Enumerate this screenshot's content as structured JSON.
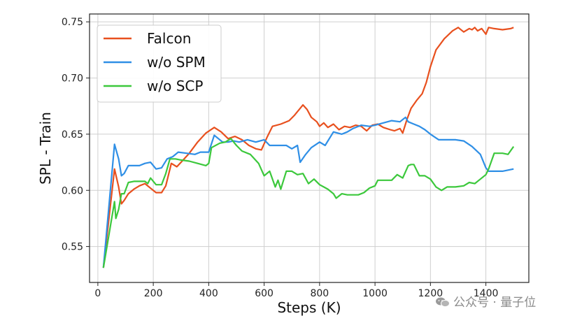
{
  "watermark": {
    "text": "公众号 · 量子位",
    "icon": "wechat-icon"
  },
  "chart_data": {
    "type": "line",
    "xlabel": "Steps (K)",
    "ylabel": "SPL - Train",
    "xlim": [
      -30,
      1555
    ],
    "ylim": [
      0.518,
      0.757
    ],
    "xticks": [
      0,
      200,
      400,
      600,
      800,
      1000,
      1200,
      1400
    ],
    "yticks": [
      0.55,
      0.6,
      0.65,
      0.7,
      0.75
    ],
    "ytick_labels": [
      "0.55",
      "0.60",
      "0.65",
      "0.70",
      "0.75"
    ],
    "grid": true,
    "legend": "top-left",
    "series": [
      {
        "name": "Falcon",
        "color": "#E8501E",
        "x": [
          20,
          60,
          75,
          85,
          95,
          110,
          130,
          150,
          170,
          200,
          210,
          230,
          245,
          265,
          285,
          300,
          330,
          360,
          390,
          420,
          445,
          470,
          495,
          520,
          545,
          570,
          590,
          610,
          630,
          660,
          690,
          710,
          740,
          755,
          770,
          790,
          800,
          815,
          830,
          850,
          870,
          890,
          910,
          930,
          950,
          970,
          990,
          1010,
          1030,
          1055,
          1070,
          1090,
          1100,
          1115,
          1130,
          1150,
          1170,
          1185,
          1200,
          1220,
          1250,
          1280,
          1300,
          1320,
          1340,
          1350,
          1360,
          1370,
          1385,
          1400,
          1410,
          1430,
          1460,
          1490,
          1500
        ],
        "y": [
          0.531,
          0.619,
          0.603,
          0.588,
          0.591,
          0.597,
          0.601,
          0.604,
          0.606,
          0.6,
          0.598,
          0.598,
          0.604,
          0.624,
          0.621,
          0.625,
          0.633,
          0.643,
          0.651,
          0.656,
          0.652,
          0.646,
          0.648,
          0.645,
          0.64,
          0.637,
          0.636,
          0.647,
          0.657,
          0.659,
          0.662,
          0.667,
          0.676,
          0.672,
          0.665,
          0.661,
          0.657,
          0.66,
          0.656,
          0.659,
          0.654,
          0.657,
          0.656,
          0.658,
          0.657,
          0.653,
          0.658,
          0.659,
          0.656,
          0.654,
          0.653,
          0.655,
          0.651,
          0.663,
          0.673,
          0.68,
          0.686,
          0.696,
          0.71,
          0.725,
          0.735,
          0.742,
          0.745,
          0.741,
          0.744,
          0.743,
          0.745,
          0.742,
          0.744,
          0.739,
          0.745,
          0.744,
          0.743,
          0.744,
          0.745
        ]
      },
      {
        "name": "w/o SPM",
        "color": "#2F8FE6",
        "x": [
          20,
          60,
          75,
          85,
          95,
          110,
          130,
          150,
          170,
          190,
          210,
          230,
          250,
          270,
          290,
          320,
          350,
          370,
          400,
          420,
          450,
          470,
          490,
          510,
          540,
          570,
          600,
          620,
          650,
          680,
          700,
          720,
          730,
          750,
          770,
          800,
          820,
          850,
          880,
          900,
          920,
          950,
          980,
          1000,
          1030,
          1060,
          1090,
          1100,
          1110,
          1120,
          1140,
          1160,
          1180,
          1200,
          1230,
          1260,
          1290,
          1320,
          1350,
          1380,
          1400,
          1410,
          1430,
          1460,
          1500
        ],
        "y": [
          0.531,
          0.641,
          0.628,
          0.613,
          0.615,
          0.622,
          0.622,
          0.622,
          0.624,
          0.625,
          0.619,
          0.62,
          0.628,
          0.63,
          0.634,
          0.633,
          0.632,
          0.634,
          0.634,
          0.649,
          0.643,
          0.643,
          0.644,
          0.643,
          0.645,
          0.643,
          0.645,
          0.64,
          0.64,
          0.64,
          0.637,
          0.64,
          0.625,
          0.632,
          0.638,
          0.643,
          0.64,
          0.652,
          0.65,
          0.652,
          0.655,
          0.658,
          0.657,
          0.658,
          0.66,
          0.662,
          0.661,
          0.663,
          0.665,
          0.661,
          0.659,
          0.657,
          0.654,
          0.65,
          0.645,
          0.645,
          0.645,
          0.644,
          0.639,
          0.632,
          0.62,
          0.617,
          0.617,
          0.617,
          0.619
        ]
      },
      {
        "name": "w/o SCP",
        "color": "#3CC83C",
        "x": [
          20,
          60,
          65,
          75,
          85,
          95,
          110,
          130,
          150,
          170,
          180,
          190,
          210,
          230,
          245,
          260,
          280,
          300,
          330,
          360,
          390,
          400,
          410,
          440,
          460,
          480,
          500,
          520,
          550,
          580,
          600,
          620,
          640,
          650,
          660,
          680,
          700,
          720,
          740,
          760,
          780,
          800,
          815,
          830,
          850,
          860,
          880,
          900,
          920,
          940,
          960,
          980,
          1000,
          1010,
          1040,
          1060,
          1080,
          1100,
          1120,
          1130,
          1140,
          1160,
          1180,
          1200,
          1220,
          1240,
          1260,
          1290,
          1320,
          1340,
          1360,
          1380,
          1400,
          1410,
          1430,
          1460,
          1480,
          1500
        ],
        "y": [
          0.531,
          0.59,
          0.575,
          0.583,
          0.597,
          0.597,
          0.607,
          0.608,
          0.608,
          0.608,
          0.606,
          0.611,
          0.605,
          0.605,
          0.615,
          0.628,
          0.628,
          0.627,
          0.626,
          0.624,
          0.622,
          0.624,
          0.638,
          0.642,
          0.643,
          0.646,
          0.64,
          0.635,
          0.632,
          0.624,
          0.613,
          0.617,
          0.603,
          0.609,
          0.601,
          0.617,
          0.617,
          0.614,
          0.615,
          0.606,
          0.61,
          0.605,
          0.603,
          0.601,
          0.597,
          0.593,
          0.597,
          0.596,
          0.596,
          0.596,
          0.598,
          0.602,
          0.604,
          0.609,
          0.609,
          0.609,
          0.614,
          0.611,
          0.622,
          0.623,
          0.623,
          0.613,
          0.613,
          0.61,
          0.603,
          0.6,
          0.603,
          0.603,
          0.604,
          0.607,
          0.606,
          0.61,
          0.614,
          0.619,
          0.633,
          0.633,
          0.632,
          0.639
        ]
      }
    ]
  }
}
